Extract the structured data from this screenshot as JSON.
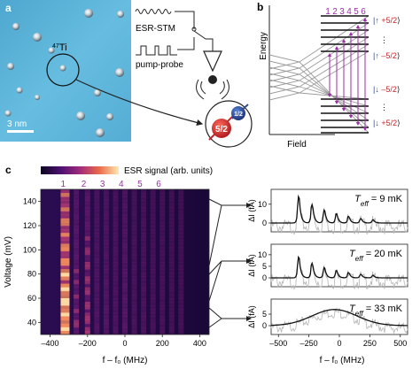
{
  "panel_labels": {
    "a": "a",
    "b": "b",
    "c": "c"
  },
  "panel_a": {
    "atom_label_mass": "47",
    "atom_label_elem": "Ti",
    "scalebar_label": "3 nm",
    "esr_label": "ESR-STM",
    "pump_label": "pump-probe",
    "nuclear_spin": "5/2",
    "electron_spin": "1/2"
  },
  "panel_b": {
    "ylabel": "Energy",
    "xlabel": "Field",
    "transition_numbers": [
      "1",
      "2",
      "3",
      "4",
      "5",
      "6"
    ],
    "state_labels": [
      "|↑ +5/2⟩",
      "|↑ –5/2⟩",
      "|↓ –5/2⟩",
      "|↓ +5/2⟩"
    ],
    "ellipsis": "⋮"
  },
  "panel_c": {
    "colorbar_label": "ESR signal (arb. units)",
    "peak_numbers": [
      "1",
      "2",
      "3",
      "4",
      "5",
      "6"
    ],
    "heatmap": {
      "ylabel": "Voltage (mV)",
      "xlabel": "f – f₀ (MHz)",
      "xticks": [
        "–400",
        "–200",
        "0",
        "200",
        "400"
      ],
      "yticks": [
        "40",
        "60",
        "80",
        "100",
        "120",
        "140"
      ]
    },
    "spectra": [
      {
        "title_prefix": "T",
        "title_sub": "eff",
        "title_value": " = 9 mK",
        "yticks": [
          "0",
          "10"
        ]
      },
      {
        "title_prefix": "T",
        "title_sub": "eff",
        "title_value": " = 20 mK",
        "yticks": [
          "0",
          "5",
          "10"
        ]
      },
      {
        "title_prefix": "T",
        "title_sub": "eff",
        "title_value": " = 33 mK",
        "yticks": [
          "0",
          "5"
        ]
      }
    ],
    "spectra_ylabel": "ΔI (fA)",
    "spectra_xlabel": "f – f₀ (MHz)",
    "spectra_xticks": [
      "–500",
      "–250",
      "0",
      "250",
      "500"
    ]
  },
  "colors": {
    "stm_bg": "#5fb6d9",
    "purple": "#9b2fa6",
    "red": "#c0282c",
    "blue": "#2d4a8c",
    "gray": "#9a9a9a"
  }
}
